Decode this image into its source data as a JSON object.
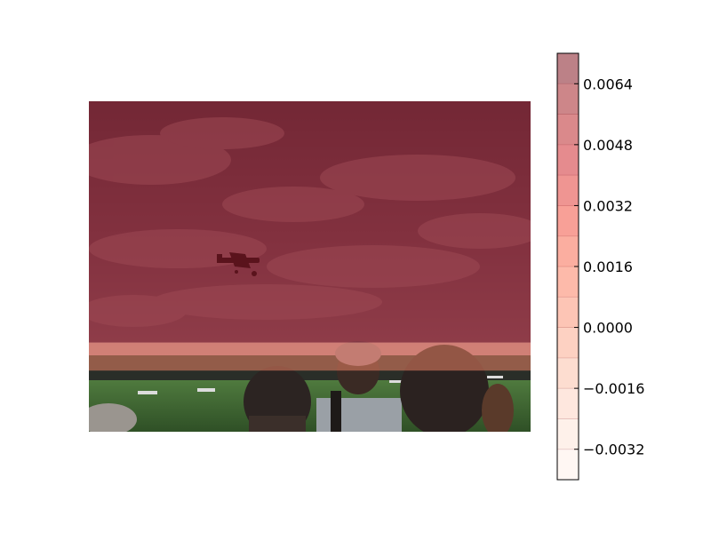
{
  "chart_data": {
    "type": "heatmap",
    "background_photo": {
      "description_tag": "airshow-photo",
      "sky_color": "#7d5566",
      "cloud_color": "#b6808c",
      "tree_line_color": "#2a2e28",
      "grass_color": "#3f6a33",
      "crowd_dark": "#2a2220"
    },
    "overlay_rows": [
      {
        "value": 0.0068,
        "y_range": [
          0.0,
          0.73
        ]
      },
      {
        "value": 0.0005,
        "y_range": [
          0.73,
          0.815
        ]
      }
    ],
    "colorbar": {
      "range": [
        -0.004,
        0.0072
      ],
      "level_step": 0.0008,
      "ticks": [
        0.0064,
        0.0048,
        0.0032,
        0.0016,
        0.0,
        -0.0016,
        -0.0032
      ],
      "tick_labels": [
        "0.0064",
        "0.0048",
        "0.0032",
        "0.0016",
        "0.0000",
        "−0.0016",
        "−0.0032"
      ],
      "colormap": "Reds",
      "alpha": 0.5
    }
  }
}
